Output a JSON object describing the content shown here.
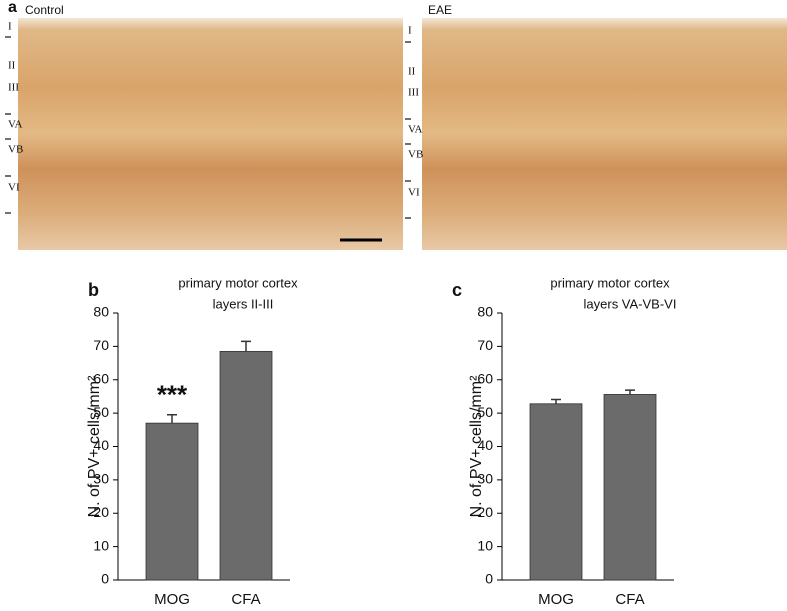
{
  "panel_a": {
    "label": "a",
    "images": [
      {
        "label": "Control",
        "layers": [
          "I",
          "II",
          "III",
          "VA",
          "VB",
          "VI"
        ]
      },
      {
        "label": "EAE",
        "layers": [
          "I",
          "II",
          "III",
          "VA",
          "VB",
          "VI"
        ]
      }
    ]
  },
  "chart_data": [
    {
      "type": "bar",
      "panel": "b",
      "title": "primary motor cortex",
      "subtitle": "layers II-III",
      "y_label": "N. of PV+ cells/mm²",
      "categories": [
        "MOG",
        "CFA"
      ],
      "values": [
        47,
        68.5
      ],
      "errors": [
        2.5,
        3
      ],
      "annotations": [
        "***",
        null
      ],
      "color": "#6b6b6b",
      "ylim": [
        0,
        80
      ],
      "yticks": [
        0,
        10,
        20,
        30,
        40,
        50,
        60,
        70,
        80
      ]
    },
    {
      "type": "bar",
      "panel": "c",
      "title": "primary motor cortex",
      "subtitle": "layers VA-VB-VI",
      "y_label": "N. of PV+ cells/mm²",
      "categories": [
        "MOG",
        "CFA"
      ],
      "values": [
        52.8,
        55.6
      ],
      "errors": [
        1.3,
        1.3
      ],
      "annotations": [
        null,
        null
      ],
      "color": "#6b6b6b",
      "ylim": [
        0,
        80
      ],
      "yticks": [
        0,
        10,
        20,
        30,
        40,
        50,
        60,
        70,
        80
      ]
    }
  ]
}
